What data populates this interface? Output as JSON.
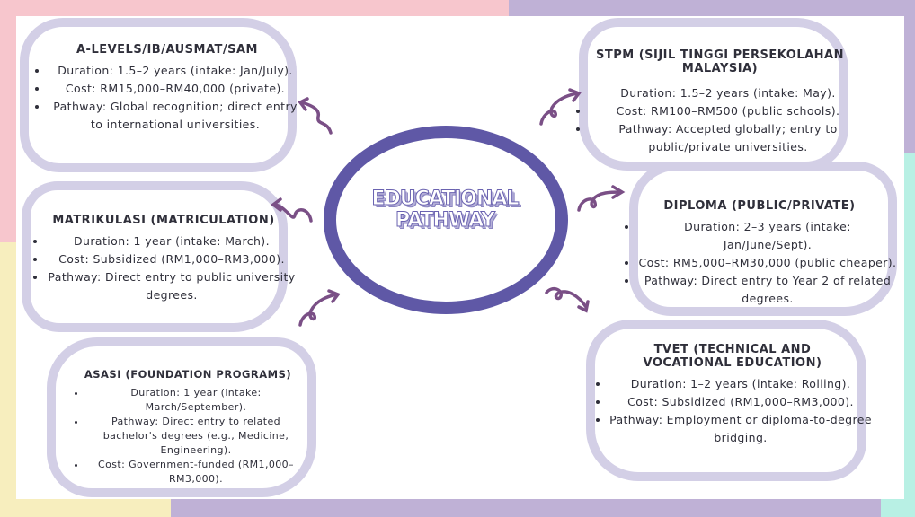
{
  "center": {
    "title_line1": "EDUCATIONAL",
    "title_line2": "PATHWAY"
  },
  "cards": {
    "alevels": {
      "title": "A-LEVELS/IB/AUSMAT/SAM",
      "items": [
        "Duration: 1.5–2 years (intake: Jan/July).",
        "Cost: RM15,000–RM40,000 (private).",
        "Pathway: Global recognition; direct entry to international universities."
      ]
    },
    "matrikulasi": {
      "title": "MATRIKULASI (MATRICULATION)",
      "items": [
        "Duration: 1 year (intake: March).",
        "Cost: Subsidized (RM1,000–RM3,000).",
        "Pathway: Direct entry to public university degrees."
      ]
    },
    "asasi": {
      "title": "ASASI (FOUNDATION PROGRAMS)",
      "items": [
        "Duration: 1 year (intake: March/September).",
        "Pathway: Direct entry to related bachelor's degrees (e.g., Medicine, Engineering).",
        "Cost: Government-funded (RM1,000–RM3,000)."
      ]
    },
    "stpm": {
      "title": "STPM (SIJIL TINGGI PERSEKOLAHAN MALAYSIA)",
      "items": [
        "Duration: 1.5–2 years (intake: May).",
        "Cost: RM100–RM500 (public schools).",
        "Pathway: Accepted globally; entry to public/private universities."
      ]
    },
    "diploma": {
      "title": "DIPLOMA (PUBLIC/PRIVATE)",
      "items": [
        "Duration: 2–3 years (intake: Jan/June/Sept).",
        "Cost: RM5,000–RM30,000 (public cheaper).",
        "Pathway: Direct entry to Year 2 of related degrees."
      ]
    },
    "tvet": {
      "title": "TVET (TECHNICAL AND VOCATIONAL EDUCATION)",
      "items": [
        "Duration: 1–2 years (intake: Rolling).",
        "Cost: Subsidized (RM1,000–RM3,000).",
        "Pathway: Employment or diploma-to-degree bridging."
      ]
    }
  },
  "colors": {
    "pink": "#f7c6cd",
    "lavender": "#bfb1d6",
    "mint": "#b8f0e4",
    "yellow": "#f7eebe",
    "ring": "#5f58a6",
    "arrow": "#7a4f86",
    "blob": "#d3cfe6"
  }
}
